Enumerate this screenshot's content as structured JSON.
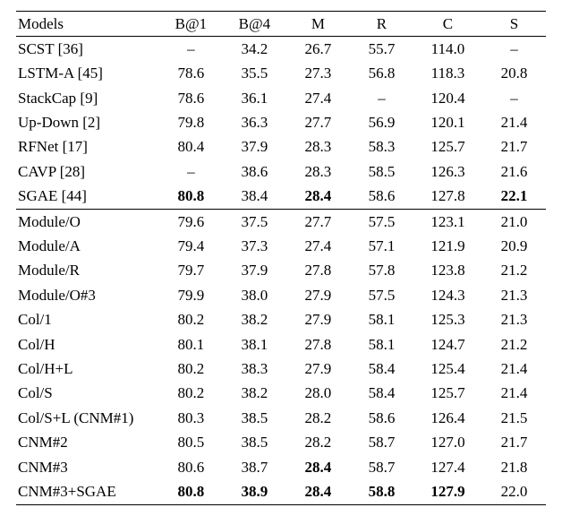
{
  "table": {
    "header": {
      "models": "Models",
      "cols": [
        "B@1",
        "B@4",
        "M",
        "R",
        "C",
        "S"
      ]
    },
    "groups": [
      {
        "rows": [
          {
            "model": "SCST [36]",
            "vals": [
              "–",
              "34.2",
              "26.7",
              "55.7",
              "114.0",
              "–"
            ],
            "bold": [
              false,
              false,
              false,
              false,
              false,
              false,
              false
            ]
          },
          {
            "model": "LSTM-A [45]",
            "vals": [
              "78.6",
              "35.5",
              "27.3",
              "56.8",
              "118.3",
              "20.8"
            ],
            "bold": [
              false,
              false,
              false,
              false,
              false,
              false,
              false
            ]
          },
          {
            "model": "StackCap [9]",
            "vals": [
              "78.6",
              "36.1",
              "27.4",
              "–",
              "120.4",
              "–"
            ],
            "bold": [
              false,
              false,
              false,
              false,
              false,
              false,
              false
            ]
          },
          {
            "model": "Up-Down [2]",
            "vals": [
              "79.8",
              "36.3",
              "27.7",
              "56.9",
              "120.1",
              "21.4"
            ],
            "bold": [
              false,
              false,
              false,
              false,
              false,
              false,
              false
            ]
          },
          {
            "model": "RFNet [17]",
            "vals": [
              "80.4",
              "37.9",
              "28.3",
              "58.3",
              "125.7",
              "21.7"
            ],
            "bold": [
              false,
              false,
              false,
              false,
              false,
              false,
              false
            ]
          },
          {
            "model": "CAVP [28]",
            "vals": [
              "–",
              "38.6",
              "28.3",
              "58.5",
              "126.3",
              "21.6"
            ],
            "bold": [
              false,
              false,
              false,
              false,
              false,
              false,
              false
            ]
          },
          {
            "model": "SGAE [44]",
            "vals": [
              "80.8",
              "38.4",
              "28.4",
              "58.6",
              "127.8",
              "22.1"
            ],
            "bold": [
              false,
              true,
              false,
              true,
              false,
              false,
              true
            ]
          }
        ]
      },
      {
        "rows": [
          {
            "model": "Module/O",
            "vals": [
              "79.6",
              "37.5",
              "27.7",
              "57.5",
              "123.1",
              "21.0"
            ],
            "bold": [
              false,
              false,
              false,
              false,
              false,
              false,
              false
            ]
          },
          {
            "model": "Module/A",
            "vals": [
              "79.4",
              "37.3",
              "27.4",
              "57.1",
              "121.9",
              "20.9"
            ],
            "bold": [
              false,
              false,
              false,
              false,
              false,
              false,
              false
            ]
          },
          {
            "model": "Module/R",
            "vals": [
              "79.7",
              "37.9",
              "27.8",
              "57.8",
              "123.8",
              "21.2"
            ],
            "bold": [
              false,
              false,
              false,
              false,
              false,
              false,
              false
            ]
          },
          {
            "model": "Module/O#3",
            "vals": [
              "79.9",
              "38.0",
              "27.9",
              "57.5",
              "124.3",
              "21.3"
            ],
            "bold": [
              false,
              false,
              false,
              false,
              false,
              false,
              false
            ]
          },
          {
            "model": "Col/1",
            "vals": [
              "80.2",
              "38.2",
              "27.9",
              "58.1",
              "125.3",
              "21.3"
            ],
            "bold": [
              false,
              false,
              false,
              false,
              false,
              false,
              false
            ]
          },
          {
            "model": "Col/H",
            "vals": [
              "80.1",
              "38.1",
              "27.8",
              "58.1",
              "124.7",
              "21.2"
            ],
            "bold": [
              false,
              false,
              false,
              false,
              false,
              false,
              false
            ]
          },
          {
            "model": "Col/H+L",
            "vals": [
              "80.2",
              "38.3",
              "27.9",
              "58.4",
              "125.4",
              "21.4"
            ],
            "bold": [
              false,
              false,
              false,
              false,
              false,
              false,
              false
            ]
          },
          {
            "model": "Col/S",
            "vals": [
              "80.2",
              "38.2",
              "28.0",
              "58.4",
              "125.7",
              "21.4"
            ],
            "bold": [
              false,
              false,
              false,
              false,
              false,
              false,
              false
            ]
          },
          {
            "model": "Col/S+L (CNM#1)",
            "vals": [
              "80.3",
              "38.5",
              "28.2",
              "58.6",
              "126.4",
              "21.5"
            ],
            "bold": [
              false,
              false,
              false,
              false,
              false,
              false,
              false
            ]
          },
          {
            "model": "CNM#2",
            "vals": [
              "80.5",
              "38.5",
              "28.2",
              "58.7",
              "127.0",
              "21.7"
            ],
            "bold": [
              false,
              false,
              false,
              false,
              false,
              false,
              false
            ]
          },
          {
            "model": "CNM#3",
            "vals": [
              "80.6",
              "38.7",
              "28.4",
              "58.7",
              "127.4",
              "21.8"
            ],
            "bold": [
              false,
              false,
              false,
              true,
              false,
              false,
              false
            ]
          },
          {
            "model": "CNM#3+SGAE",
            "vals": [
              "80.8",
              "38.9",
              "28.4",
              "58.8",
              "127.9",
              "22.0"
            ],
            "bold": [
              false,
              true,
              true,
              true,
              true,
              true,
              false
            ]
          }
        ]
      }
    ],
    "style": {
      "font_family": "Times New Roman",
      "font_size_pt": 13,
      "text_color": "#000000",
      "background_color": "#ffffff",
      "rule_color": "#000000",
      "col_widths_pct": [
        27,
        12,
        12,
        12,
        12,
        13,
        12
      ]
    }
  }
}
